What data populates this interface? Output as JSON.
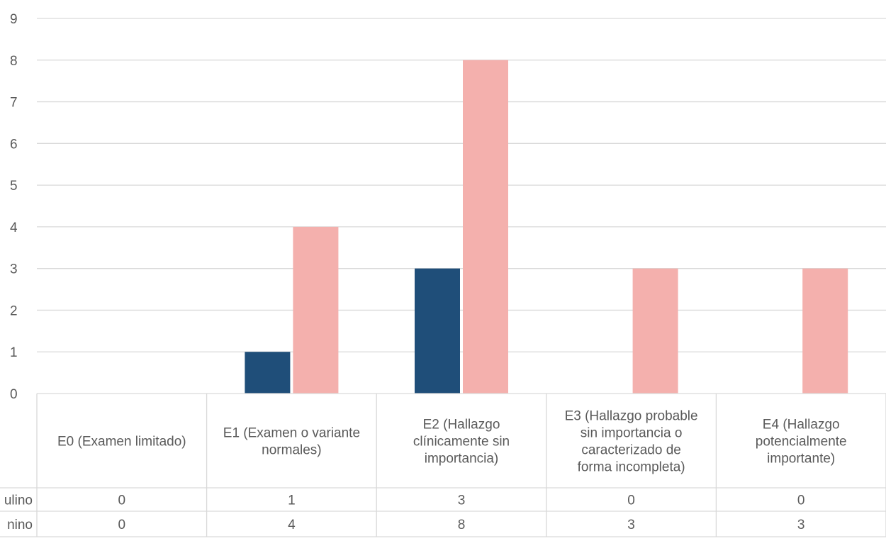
{
  "chart_data": {
    "type": "bar",
    "categories": [
      "E0 (Examen limitado)",
      "E1 (Examen o variante normales)",
      "E2 (Hallazgo clínicamente sin importancia)",
      "E3 (Hallazgo probable sin importancia o caracterizado de forma incompleta)",
      "E4 (Hallazgo potencialmente importante)"
    ],
    "category_lines": [
      [
        "E0 (Examen limitado)"
      ],
      [
        "E1 (Examen o variante",
        "normales)"
      ],
      [
        "E2 (Hallazgo",
        "clínicamente sin",
        "importancia)"
      ],
      [
        "E3 (Hallazgo probable",
        "sin importancia o",
        "caracterizado de",
        "forma incompleta)"
      ],
      [
        "E4 (Hallazgo",
        "potencialmente",
        "importante)"
      ]
    ],
    "series": [
      {
        "row_label": "ulino",
        "color": "#1f4e79",
        "values": [
          0,
          1,
          3,
          0,
          0
        ]
      },
      {
        "row_label": "nino",
        "color": "#f4b0ad",
        "values": [
          0,
          4,
          8,
          3,
          3
        ]
      }
    ],
    "ylim": [
      0,
      9
    ],
    "y_ticks": [
      0,
      1,
      2,
      3,
      4,
      5,
      6,
      7,
      8,
      9
    ],
    "grid": true,
    "legend": "data-table"
  }
}
